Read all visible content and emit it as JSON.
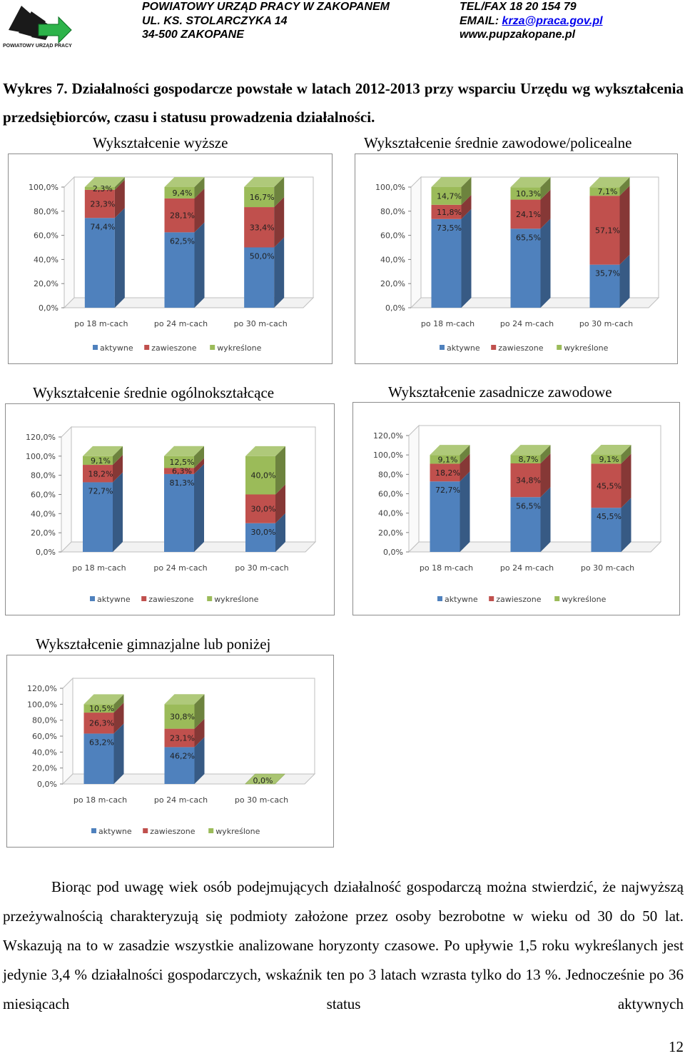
{
  "header": {
    "logo_text": "POWIATOWY URZĄD PRACY",
    "left_lines": [
      "POWIATOWY URZĄD PRACY W ZAKOPANEM",
      "UL. KS. STOLARCZYKA 14",
      "34-500 ZAKOPANE"
    ],
    "tel": "TEL/FAX 18 20 154 79",
    "email_label": "EMAIL: ",
    "email": "krza@praca.gov.pl",
    "www": "www.pupzakopane.pl"
  },
  "title": "Wykres 7. Działalności gospodarcze powstałe w latach 2012-2013 przy wsparciu Urzędu wg wykształcenia przedsiębiorców, czasu i statusu prowadzenia działalności.",
  "colors": {
    "aktywne": "#4f81bd",
    "zawieszone": "#c0504d",
    "wykreslone": "#9bbb59"
  },
  "chart_data": [
    {
      "type": "bar",
      "stacked": true,
      "title": "Wykształcenie wyższe",
      "categories": [
        "po 18 m-cach",
        "po 24 m-cach",
        "po 30 m-cach"
      ],
      "series": [
        {
          "name": "aktywne",
          "values": [
            74.4,
            62.5,
            50.0
          ],
          "labels": [
            "74,4%",
            "62,5%",
            "50,0%"
          ]
        },
        {
          "name": "zawieszone",
          "values": [
            23.3,
            28.1,
            33.4
          ],
          "labels": [
            "23,3%",
            "28,1%",
            "33,4%"
          ]
        },
        {
          "name": "wykreślone",
          "values": [
            2.3,
            9.4,
            16.7
          ],
          "labels": [
            "2,3%",
            "9,4%",
            "16,7%"
          ]
        }
      ],
      "ylim": [
        0,
        100
      ],
      "yticks": [
        "0,0%",
        "20,0%",
        "40,0%",
        "60,0%",
        "80,0%",
        "100,0%"
      ],
      "legend": "bottom",
      "grid": false
    },
    {
      "type": "bar",
      "stacked": true,
      "title": "Wykształcenie średnie zawodowe/policealne",
      "categories": [
        "po 18 m-cach",
        "po 24 m-cach",
        "po 30 m-cach"
      ],
      "series": [
        {
          "name": "aktywne",
          "values": [
            73.5,
            65.5,
            35.7
          ],
          "labels": [
            "73,5%",
            "65,5%",
            "35,7%"
          ]
        },
        {
          "name": "zawieszone",
          "values": [
            11.8,
            24.1,
            57.1
          ],
          "labels": [
            "11,8%",
            "24,1%",
            "57,1%"
          ]
        },
        {
          "name": "wykreślone",
          "values": [
            14.7,
            10.3,
            7.1
          ],
          "labels": [
            "14,7%",
            "10,3%",
            "7,1%"
          ]
        }
      ],
      "ylim": [
        0,
        100
      ],
      "yticks": [
        "0,0%",
        "20,0%",
        "40,0%",
        "60,0%",
        "80,0%",
        "100,0%"
      ],
      "legend": "bottom",
      "grid": false
    },
    {
      "type": "bar",
      "stacked": true,
      "title": "Wykształcenie średnie ogólnokształcące",
      "categories": [
        "po 18 m-cach",
        "po 24 m-cach",
        "po 30 m-cach"
      ],
      "series": [
        {
          "name": "aktywne",
          "values": [
            72.7,
            81.3,
            30.0
          ],
          "labels": [
            "72,7%",
            "81,3%",
            "30,0%"
          ]
        },
        {
          "name": "zawieszone",
          "values": [
            18.2,
            6.3,
            30.0
          ],
          "labels": [
            "18,2%",
            "6,3%",
            "30,0%"
          ]
        },
        {
          "name": "wykreślone",
          "values": [
            9.1,
            12.5,
            40.0
          ],
          "labels": [
            "9,1%",
            "12,5%",
            "40,0%"
          ]
        }
      ],
      "ylim": [
        0,
        120
      ],
      "yticks": [
        "0,0%",
        "20,0%",
        "40,0%",
        "60,0%",
        "80,0%",
        "100,0%",
        "120,0%"
      ],
      "legend": "bottom",
      "grid": false
    },
    {
      "type": "bar",
      "stacked": true,
      "title": "Wykształcenie zasadnicze zawodowe",
      "categories": [
        "po 18 m-cach",
        "po 24 m-cach",
        "po 30 m-cach"
      ],
      "series": [
        {
          "name": "aktywne",
          "values": [
            72.7,
            56.5,
            45.5
          ],
          "labels": [
            "72,7%",
            "56,5%",
            "45,5%"
          ]
        },
        {
          "name": "zawieszone",
          "values": [
            18.2,
            34.8,
            45.5
          ],
          "labels": [
            "18,2%",
            "34,8%",
            "45,5%"
          ]
        },
        {
          "name": "wykreślone",
          "values": [
            9.1,
            8.7,
            9.1
          ],
          "labels": [
            "9,1%",
            "8,7%",
            "9,1%"
          ]
        }
      ],
      "ylim": [
        0,
        120
      ],
      "yticks": [
        "0,0%",
        "20,0%",
        "40,0%",
        "60,0%",
        "80,0%",
        "100,0%",
        "120,0%"
      ],
      "legend": "bottom",
      "grid": false
    },
    {
      "type": "bar",
      "stacked": true,
      "title": "Wykształcenie gimnazjalne lub poniżej",
      "categories": [
        "po 18 m-cach",
        "po 24 m-cach",
        "po 30 m-cach"
      ],
      "series": [
        {
          "name": "aktywne",
          "values": [
            63.2,
            46.2,
            0.0
          ],
          "labels": [
            "63,2%",
            "46,2%",
            "0,0%"
          ]
        },
        {
          "name": "zawieszone",
          "values": [
            26.3,
            23.1,
            0.0
          ],
          "labels": [
            "26,3%",
            "23,1%",
            ""
          ]
        },
        {
          "name": "wykreślone",
          "values": [
            10.5,
            30.8,
            0.0
          ],
          "labels": [
            "10,5%",
            "30,8%",
            ""
          ]
        }
      ],
      "ylim": [
        0,
        120
      ],
      "yticks": [
        "0,0%",
        "20,0%",
        "40,0%",
        "60,0%",
        "80,0%",
        "100,0%",
        "120,0%"
      ],
      "legend": "bottom",
      "grid": false
    }
  ],
  "body_text": "Biorąc pod uwagę wiek osób podejmujących działalność gospodarczą można stwierdzić, że najwyższą przeżywalnością charakteryzują się podmioty założone przez osoby bezrobotne w wieku od 30 do 50 lat. Wskazują na to w zasadzie wszystkie analizowane horyzonty czasowe. Po upływie 1,5 roku wykreślanych jest jedynie 3,4 % działalności gospodarczych, wskaźnik ten po 3 latach wzrasta tylko do 13 %. Jednocześnie po 36 miesiącach status aktywnych",
  "page_number": "12"
}
